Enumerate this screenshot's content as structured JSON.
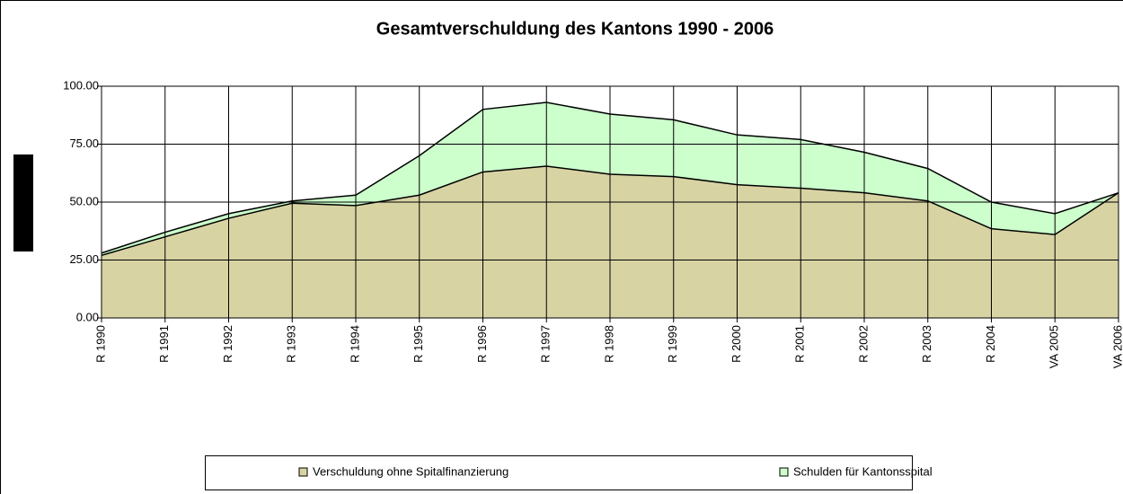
{
  "chart_data": {
    "type": "stacked_area",
    "title": "Gesamtverschuldung des Kantons 1990 - 2006",
    "categories": [
      "R 1990",
      "R 1991",
      "R 1992",
      "R 1993",
      "R 1994",
      "R 1995",
      "R 1996",
      "R 1997",
      "R 1998",
      "R 1999",
      "R 2000",
      "R 2001",
      "R 2002",
      "R 2003",
      "R 2004",
      "VA 2005",
      "VA 2006"
    ],
    "series": [
      {
        "name": "Verschuldung ohne Spitalfinanzierung",
        "color": "#d8d3a3",
        "values": [
          27,
          35,
          43,
          49.5,
          48.5,
          53,
          63,
          65.5,
          62,
          61,
          57.5,
          56,
          54,
          50.5,
          38.5,
          36,
          54
        ]
      },
      {
        "name": "Schulden für Kantonsspital",
        "color": "#ccffcc",
        "values": [
          1,
          2,
          2,
          1,
          4.5,
          17,
          27,
          27.5,
          26,
          24.5,
          21.5,
          21,
          17.5,
          14,
          11.5,
          9,
          0
        ]
      }
    ],
    "ylim": [
      0,
      100
    ],
    "yticks": [
      {
        "value": 0,
        "label": "0.00"
      },
      {
        "value": 25,
        "label": "25.00"
      },
      {
        "value": 50,
        "label": "50.00"
      },
      {
        "value": 75,
        "label": "75.00"
      },
      {
        "value": 100,
        "label": "100.00"
      }
    ],
    "grid": true,
    "legend": "bottom"
  }
}
